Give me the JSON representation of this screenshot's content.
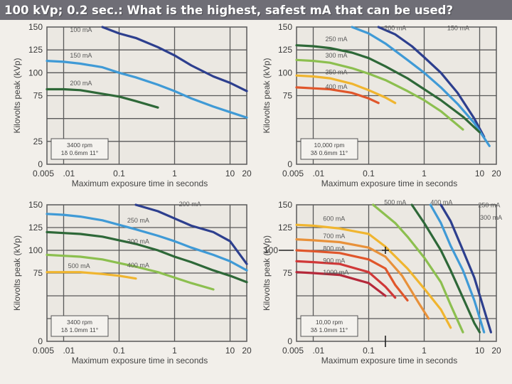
{
  "title": "100 kVp; 0.2 sec.: What is the highest, safest mA that can be used?",
  "colors": {
    "grid": "#595959",
    "plotbg": "#ebe8e2",
    "page": "#f2efea",
    "label_text": "#575757"
  },
  "chart_data": [
    {
      "type": "line",
      "xlabel": "Maximum exposure time in seconds",
      "ylabel": "Kilovolts peak (kVp)",
      "x_scale": "log",
      "xlim": [
        0.005,
        20
      ],
      "ylim": [
        0,
        150
      ],
      "x_ticks": [
        0.005,
        0.01,
        0.1,
        1,
        10,
        20
      ],
      "x_tick_labels": [
        "0.005",
        ".01",
        "0.1",
        "1",
        "10",
        "20"
      ],
      "y_ticks": [
        0,
        25,
        75,
        100,
        125,
        150
      ],
      "y_tick_labels": [
        "0",
        "25",
        "75",
        "100",
        "125",
        "150"
      ],
      "y_tick_note": "",
      "grid": true,
      "box": [
        "3400 rpm",
        "1δ 0.6mm 11°"
      ],
      "series": [
        {
          "name": "100 mA",
          "color": "#2d3f8e",
          "x": [
            0.05,
            0.1,
            0.2,
            0.5,
            1,
            2,
            5,
            10,
            20
          ],
          "y": [
            150,
            143,
            138,
            128,
            119,
            108,
            96,
            89,
            80
          ]
        },
        {
          "name": "150 mA",
          "color": "#3f9ad6",
          "x": [
            0.005,
            0.01,
            0.02,
            0.05,
            0.1,
            0.2,
            0.5,
            1,
            2,
            5,
            10,
            20
          ],
          "y": [
            113,
            112,
            110,
            106,
            100,
            95,
            87,
            80,
            72,
            63,
            57,
            51
          ]
        },
        {
          "name": "200 mA",
          "color": "#2e6838",
          "x": [
            0.005,
            0.01,
            0.02,
            0.05,
            0.1,
            0.2,
            0.5
          ],
          "y": [
            82,
            82,
            81,
            77,
            74,
            69,
            62
          ]
        }
      ]
    },
    {
      "type": "line",
      "xlabel": "Maximum exposure time in seconds",
      "ylabel": "Kilovolts peak (kVp)",
      "x_scale": "log",
      "xlim": [
        0.005,
        20
      ],
      "ylim": [
        0,
        150
      ],
      "x_ticks": [
        0.005,
        0.01,
        0.1,
        1,
        10,
        20
      ],
      "x_tick_labels": [
        "0.005",
        ".01",
        "0.1",
        "1",
        "10",
        "20"
      ],
      "y_ticks": [
        0,
        75,
        100,
        125,
        150
      ],
      "y_tick_labels": [
        "0",
        "75",
        "100",
        "125",
        "150"
      ],
      "y_tick_note": "",
      "grid": true,
      "box": [
        "10,000 rpm",
        "3δ 0.6mm 11°"
      ],
      "series": [
        {
          "name": "150 mA",
          "color": "#2d3f8e",
          "x": [
            0.15,
            0.3,
            0.6,
            1,
            2,
            4,
            8,
            12
          ],
          "y": [
            150,
            142,
            129,
            117,
            100,
            78,
            50,
            30
          ]
        },
        {
          "name": "200 mA",
          "color": "#3f9ad6",
          "x": [
            0.05,
            0.1,
            0.2,
            0.5,
            1,
            2,
            4,
            8,
            15
          ],
          "y": [
            150,
            143,
            132,
            114,
            100,
            84,
            66,
            45,
            20
          ]
        },
        {
          "name": "250 mA",
          "color": "#2e6838",
          "x": [
            0.005,
            0.01,
            0.02,
            0.05,
            0.1,
            0.2,
            0.5,
            1,
            2,
            5,
            10
          ],
          "y": [
            130,
            129,
            127,
            122,
            116,
            107,
            94,
            82,
            70,
            52,
            35
          ]
        },
        {
          "name": "300 mA",
          "color": "#8cbf4f",
          "x": [
            0.005,
            0.01,
            0.02,
            0.05,
            0.1,
            0.2,
            0.5,
            1,
            2,
            5
          ],
          "y": [
            114,
            113,
            111,
            105,
            99,
            92,
            80,
            70,
            58,
            38
          ]
        },
        {
          "name": "350 mA",
          "color": "#f0b52f",
          "x": [
            0.005,
            0.01,
            0.02,
            0.05,
            0.1,
            0.2,
            0.3
          ],
          "y": [
            97,
            96,
            94,
            88,
            81,
            73,
            67
          ]
        },
        {
          "name": "400 mA",
          "color": "#e0562b",
          "x": [
            0.005,
            0.01,
            0.02,
            0.05,
            0.1,
            0.15
          ],
          "y": [
            84,
            83,
            82,
            78,
            72,
            67
          ]
        }
      ]
    },
    {
      "type": "line",
      "xlabel": "Maximum exposure time in seconds",
      "ylabel": "Kilovolts peak (kVp)",
      "x_scale": "log",
      "xlim": [
        0.005,
        20
      ],
      "ylim": [
        0,
        150
      ],
      "x_ticks": [
        0.005,
        0.01,
        0.1,
        1,
        10,
        20
      ],
      "x_tick_labels": [
        "0.005",
        ".01",
        "0.1",
        "1",
        "10",
        "20"
      ],
      "y_ticks": [
        0,
        75,
        100,
        125,
        150
      ],
      "y_tick_labels": [
        "0",
        "75",
        "100",
        "125",
        "150"
      ],
      "y_tick_note": "",
      "grid": true,
      "box": [
        "3400 rpm",
        "1δ 1.0mm 11°"
      ],
      "series": [
        {
          "name": "200 mA",
          "color": "#2d3f8e",
          "x": [
            0.2,
            0.5,
            1,
            2,
            5,
            10,
            20
          ],
          "y": [
            150,
            143,
            135,
            127,
            120,
            110,
            85
          ]
        },
        {
          "name": "250 mA",
          "color": "#3f9ad6",
          "x": [
            0.005,
            0.01,
            0.02,
            0.05,
            0.1,
            0.2,
            0.5,
            1,
            2,
            5,
            10,
            20
          ],
          "y": [
            140,
            139,
            137,
            133,
            128,
            123,
            116,
            110,
            103,
            95,
            88,
            78
          ]
        },
        {
          "name": "300 mA",
          "color": "#2e6838",
          "x": [
            0.005,
            0.01,
            0.02,
            0.05,
            0.1,
            0.2,
            0.5,
            1,
            2,
            5,
            10,
            20
          ],
          "y": [
            120,
            119,
            118,
            115,
            111,
            107,
            100,
            93,
            87,
            78,
            72,
            65
          ]
        },
        {
          "name": "400 mA",
          "color": "#8cbf4f",
          "x": [
            0.005,
            0.01,
            0.02,
            0.05,
            0.1,
            0.2,
            0.5,
            1,
            2,
            5
          ],
          "y": [
            95,
            94,
            93,
            90,
            86,
            82,
            76,
            70,
            64,
            57
          ]
        },
        {
          "name": "500 mA",
          "color": "#f0b52f",
          "x": [
            0.005,
            0.01,
            0.02,
            0.05,
            0.1,
            0.2
          ],
          "y": [
            76,
            76,
            76,
            74,
            72,
            69
          ]
        }
      ]
    },
    {
      "type": "line",
      "xlabel": "Maximum exposure time in seconds",
      "ylabel": "Kilovolts peak (kVp)",
      "x_scale": "log",
      "xlim": [
        0.005,
        20
      ],
      "ylim": [
        0,
        150
      ],
      "x_ticks": [
        0.005,
        0.01,
        0.1,
        1,
        10,
        20
      ],
      "x_tick_labels": [
        "0.005",
        ".01",
        "0.1",
        "1",
        "10",
        "20"
      ],
      "y_ticks": [
        0,
        75,
        125,
        150
      ],
      "y_tick_labels": [
        "0",
        "75",
        "125",
        "150"
      ],
      "y_tick_note": "100",
      "grid": true,
      "box": [
        "10,00 rpm",
        "3δ 1.0mm 11°"
      ],
      "marker": {
        "x": 0.2,
        "y": 100
      },
      "series": [
        {
          "name": "300 mA",
          "color": "#2d3f8e",
          "x": [
            2,
            3,
            5,
            8,
            12,
            16
          ],
          "y": [
            150,
            132,
            100,
            70,
            35,
            10
          ]
        },
        {
          "name": "250 mA",
          "color": "#3f9ad6",
          "x": [
            1.3,
            2,
            3,
            5,
            8,
            12
          ],
          "y": [
            150,
            130,
            105,
            78,
            45,
            10
          ]
        },
        {
          "name": "400 mA",
          "color": "#2e6838",
          "x": [
            0.6,
            1,
            2,
            3,
            5,
            8,
            10
          ],
          "y": [
            150,
            130,
            100,
            78,
            48,
            20,
            10
          ]
        },
        {
          "name": "500 mA",
          "color": "#8cbf4f",
          "x": [
            0.12,
            0.3,
            0.5,
            1,
            2,
            3,
            5
          ],
          "y": [
            150,
            130,
            115,
            92,
            65,
            40,
            10
          ]
        },
        {
          "name": "600 mA",
          "color": "#f0b52f",
          "x": [
            0.005,
            0.01,
            0.03,
            0.1,
            0.2,
            0.5,
            1,
            2,
            3
          ],
          "y": [
            128,
            127,
            124,
            118,
            104,
            80,
            58,
            35,
            15
          ]
        },
        {
          "name": "700 mA",
          "color": "#e8913a",
          "x": [
            0.005,
            0.01,
            0.03,
            0.1,
            0.2,
            0.4,
            0.8,
            1.2
          ],
          "y": [
            112,
            111,
            109,
            103,
            93,
            72,
            42,
            25
          ]
        },
        {
          "name": "800 mA",
          "color": "#e0562b",
          "x": [
            0.005,
            0.01,
            0.03,
            0.1,
            0.2,
            0.3,
            0.5
          ],
          "y": [
            100,
            99,
            97,
            90,
            80,
            62,
            45
          ]
        },
        {
          "name": "900 mA",
          "color": "#d03838",
          "x": [
            0.005,
            0.01,
            0.03,
            0.1,
            0.2,
            0.3
          ],
          "y": [
            88,
            87,
            85,
            76,
            60,
            48
          ]
        },
        {
          "name": "1000 mA",
          "color": "#b5283a",
          "x": [
            0.005,
            0.01,
            0.03,
            0.1,
            0.2
          ],
          "y": [
            76,
            75,
            73,
            64,
            50
          ]
        }
      ]
    }
  ]
}
